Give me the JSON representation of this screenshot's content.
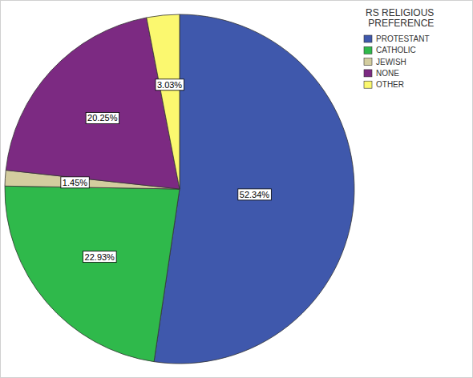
{
  "chart_data": {
    "type": "pie",
    "title": "RS RELIGIOUS PREFERENCE",
    "categories": [
      "PROTESTANT",
      "CATHOLIC",
      "JEWISH",
      "NONE",
      "OTHER"
    ],
    "values": [
      52.34,
      22.93,
      1.45,
      20.25,
      3.03
    ],
    "value_labels": [
      "52.34%",
      "22.93%",
      "1.45%",
      "20.25%",
      "3.03%"
    ],
    "colors": [
      "#3f58ac",
      "#2fb94b",
      "#d3cd9f",
      "#7c2a82",
      "#fbf86f"
    ],
    "data_labels": true,
    "legend": "top-right"
  }
}
